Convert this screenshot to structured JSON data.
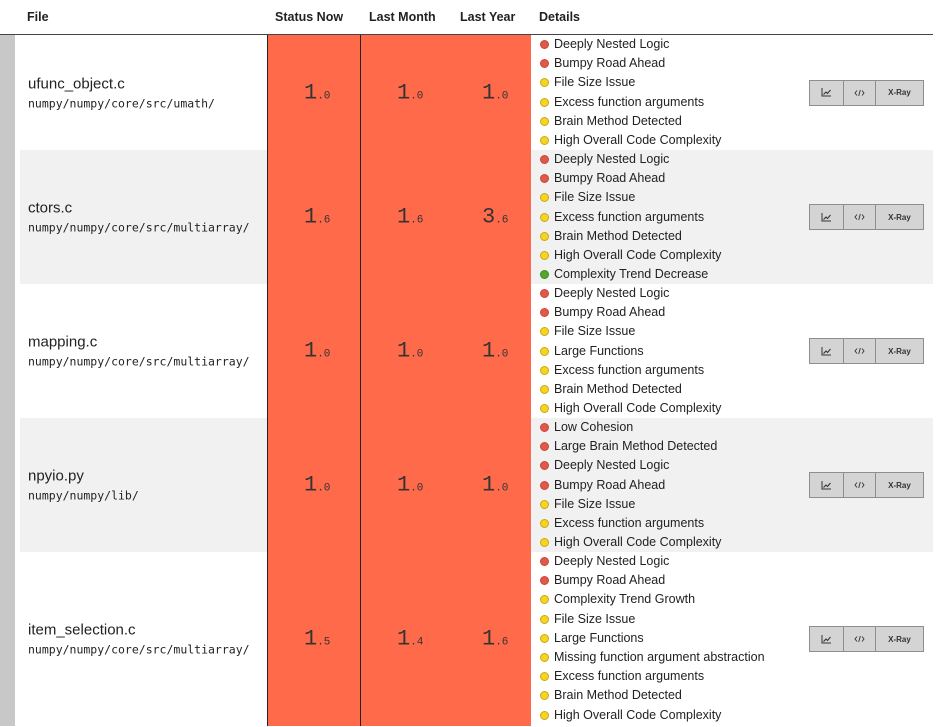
{
  "header": {
    "file": "File",
    "status_now": "Status Now",
    "last_month": "Last Month",
    "last_year": "Last Year",
    "details": "Details"
  },
  "buttons": {
    "xray_label": "X-Ray",
    "trend_icon": "trend-chart-icon",
    "code_icon": "code-icon"
  },
  "colors": {
    "score_cell": "#ff6a4b",
    "red_dot": "#e0584a",
    "yellow_dot": "#f5d423",
    "green_dot": "#52a82d"
  },
  "rows": [
    {
      "file_name": "ufunc_object.c",
      "file_path": "numpy/numpy/core/src/umath/",
      "now": {
        "int": "1",
        "dec": ".0"
      },
      "month": {
        "int": "1",
        "dec": ".0"
      },
      "year": {
        "int": "1",
        "dec": ".0"
      },
      "details": [
        {
          "label": "Deeply Nested Logic",
          "severity": "red"
        },
        {
          "label": "Bumpy Road Ahead",
          "severity": "red"
        },
        {
          "label": "File Size Issue",
          "severity": "yellow"
        },
        {
          "label": "Excess function arguments",
          "severity": "yellow"
        },
        {
          "label": "Brain Method Detected",
          "severity": "yellow"
        },
        {
          "label": "High Overall Code Complexity",
          "severity": "yellow"
        }
      ]
    },
    {
      "file_name": "ctors.c",
      "file_path": "numpy/numpy/core/src/multiarray/",
      "now": {
        "int": "1",
        "dec": ".6"
      },
      "month": {
        "int": "1",
        "dec": ".6"
      },
      "year": {
        "int": "3",
        "dec": ".6"
      },
      "details": [
        {
          "label": "Deeply Nested Logic",
          "severity": "red"
        },
        {
          "label": "Bumpy Road Ahead",
          "severity": "red"
        },
        {
          "label": "File Size Issue",
          "severity": "yellow"
        },
        {
          "label": "Excess function arguments",
          "severity": "yellow"
        },
        {
          "label": "Brain Method Detected",
          "severity": "yellow"
        },
        {
          "label": "High Overall Code Complexity",
          "severity": "yellow"
        },
        {
          "label": "Complexity Trend Decrease",
          "severity": "green"
        }
      ]
    },
    {
      "file_name": "mapping.c",
      "file_path": "numpy/numpy/core/src/multiarray/",
      "now": {
        "int": "1",
        "dec": ".0"
      },
      "month": {
        "int": "1",
        "dec": ".0"
      },
      "year": {
        "int": "1",
        "dec": ".0"
      },
      "details": [
        {
          "label": "Deeply Nested Logic",
          "severity": "red"
        },
        {
          "label": "Bumpy Road Ahead",
          "severity": "red"
        },
        {
          "label": "File Size Issue",
          "severity": "yellow"
        },
        {
          "label": "Large Functions",
          "severity": "yellow"
        },
        {
          "label": "Excess function arguments",
          "severity": "yellow"
        },
        {
          "label": "Brain Method Detected",
          "severity": "yellow"
        },
        {
          "label": "High Overall Code Complexity",
          "severity": "yellow"
        }
      ]
    },
    {
      "file_name": "npyio.py",
      "file_path": "numpy/numpy/lib/",
      "now": {
        "int": "1",
        "dec": ".0"
      },
      "month": {
        "int": "1",
        "dec": ".0"
      },
      "year": {
        "int": "1",
        "dec": ".0"
      },
      "details": [
        {
          "label": "Low Cohesion",
          "severity": "red"
        },
        {
          "label": "Large Brain Method Detected",
          "severity": "red"
        },
        {
          "label": "Deeply Nested Logic",
          "severity": "red"
        },
        {
          "label": "Bumpy Road Ahead",
          "severity": "red"
        },
        {
          "label": "File Size Issue",
          "severity": "yellow"
        },
        {
          "label": "Excess function arguments",
          "severity": "yellow"
        },
        {
          "label": "High Overall Code Complexity",
          "severity": "yellow"
        }
      ]
    },
    {
      "file_name": "item_selection.c",
      "file_path": "numpy/numpy/core/src/multiarray/",
      "now": {
        "int": "1",
        "dec": ".5"
      },
      "month": {
        "int": "1",
        "dec": ".4"
      },
      "year": {
        "int": "1",
        "dec": ".6"
      },
      "details": [
        {
          "label": "Deeply Nested Logic",
          "severity": "red"
        },
        {
          "label": "Bumpy Road Ahead",
          "severity": "red"
        },
        {
          "label": "Complexity Trend Growth",
          "severity": "yellow"
        },
        {
          "label": "File Size Issue",
          "severity": "yellow"
        },
        {
          "label": "Large Functions",
          "severity": "yellow"
        },
        {
          "label": "Missing function argument abstraction",
          "severity": "yellow"
        },
        {
          "label": "Excess function arguments",
          "severity": "yellow"
        },
        {
          "label": "Brain Method Detected",
          "severity": "yellow"
        },
        {
          "label": "High Overall Code Complexity",
          "severity": "yellow"
        }
      ]
    }
  ]
}
